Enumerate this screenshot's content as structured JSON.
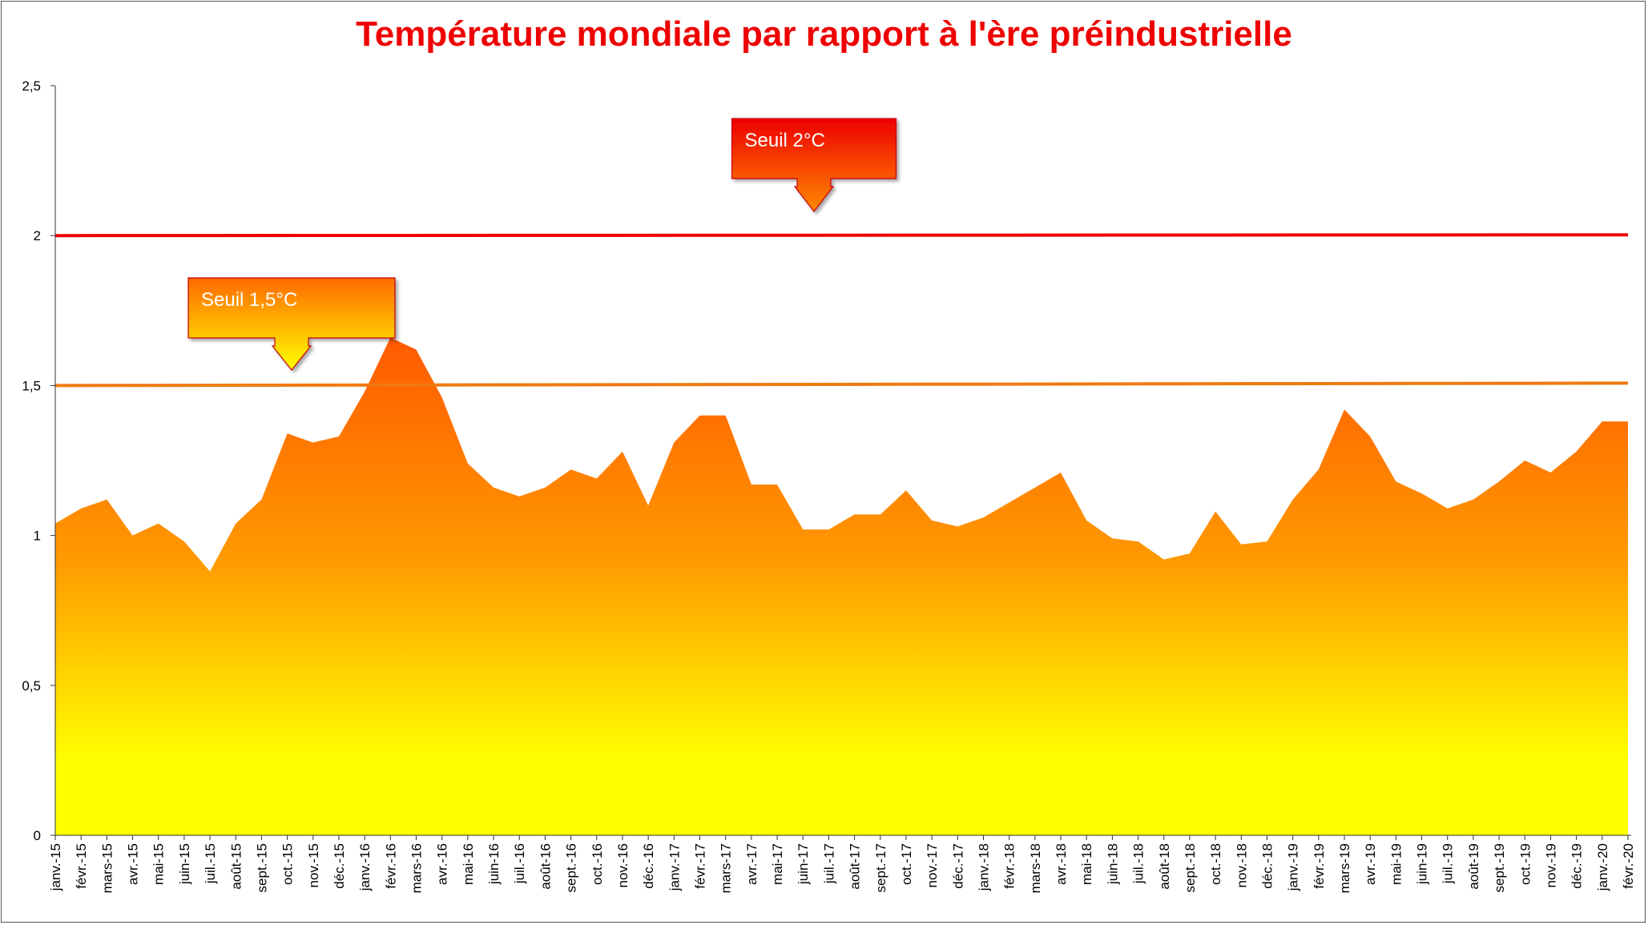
{
  "chart_data": {
    "type": "area",
    "title": "Température mondiale par rapport à l'ère préindustrielle",
    "xlabel": "",
    "ylabel": "",
    "ylim": [
      0,
      2.5
    ],
    "yticks": [
      "0",
      "0,5",
      "1",
      "1,5",
      "2",
      "2,5"
    ],
    "ytick_values": [
      0,
      0.5,
      1,
      1.5,
      2,
      2.5
    ],
    "grid": false,
    "legend": "none",
    "categories": [
      "janv.-15",
      "févr.-15",
      "mars-15",
      "avr.-15",
      "mai-15",
      "juin-15",
      "juil.-15",
      "août-15",
      "sept.-15",
      "oct.-15",
      "nov.-15",
      "déc.-15",
      "janv.-16",
      "févr.-16",
      "mars-16",
      "avr.-16",
      "mai-16",
      "juin-16",
      "juil.-16",
      "août-16",
      "sept.-16",
      "oct.-16",
      "nov.-16",
      "déc.-16",
      "janv.-17",
      "févr.-17",
      "mars-17",
      "avr.-17",
      "mai-17",
      "juin-17",
      "juil.-17",
      "août-17",
      "sept.-17",
      "oct.-17",
      "nov.-17",
      "déc.-17",
      "janv.-18",
      "févr.-18",
      "mars-18",
      "avr.-18",
      "mai-18",
      "juin-18",
      "juil.-18",
      "août-18",
      "sept.-18",
      "oct.-18",
      "nov.-18",
      "déc.-18",
      "janv.-19",
      "févr.-19",
      "mars-19",
      "avr.-19",
      "mai-19",
      "juin-19",
      "juil.-19",
      "août-19",
      "sept.-19",
      "oct.-19",
      "nov.-19",
      "déc.-19",
      "janv.-20",
      "févr.-20"
    ],
    "series": [
      {
        "values": [
          1.04,
          1.09,
          1.12,
          1.0,
          1.04,
          0.98,
          0.88,
          1.04,
          1.12,
          1.34,
          1.31,
          1.33,
          1.48,
          1.66,
          1.62,
          1.46,
          1.24,
          1.16,
          1.13,
          1.16,
          1.22,
          1.19,
          1.28,
          1.1,
          1.31,
          1.4,
          1.4,
          1.17,
          1.17,
          1.02,
          1.02,
          1.07,
          1.07,
          1.15,
          1.05,
          1.03,
          1.06,
          1.11,
          1.16,
          1.21,
          1.05,
          0.99,
          0.98,
          0.92,
          0.94,
          1.08,
          0.97,
          0.98,
          1.12,
          1.22,
          1.42,
          1.33,
          1.18,
          1.14,
          1.09,
          1.12,
          1.18,
          1.25,
          1.21,
          1.28,
          1.38,
          1.38
        ]
      }
    ],
    "thresholds": [
      {
        "label": "Seuil 2°C",
        "value": 2.0,
        "color": "#ee0000"
      },
      {
        "label": "Seuil 1,5°C",
        "value": 1.5,
        "color": "#f07a10"
      }
    ],
    "colors": {
      "area_top": "#ff5a00",
      "area_mid": "#ff9a00",
      "area_bottom": "#ffff00",
      "line_2c": "#ee0000",
      "line_15c": "#f07a10",
      "callout_2c_top": "#ee0000",
      "callout_2c_bottom": "#ff8a00",
      "callout_15c_top": "#ff6a00",
      "callout_15c_bottom": "#ffff00",
      "title": "#ee0000"
    }
  }
}
